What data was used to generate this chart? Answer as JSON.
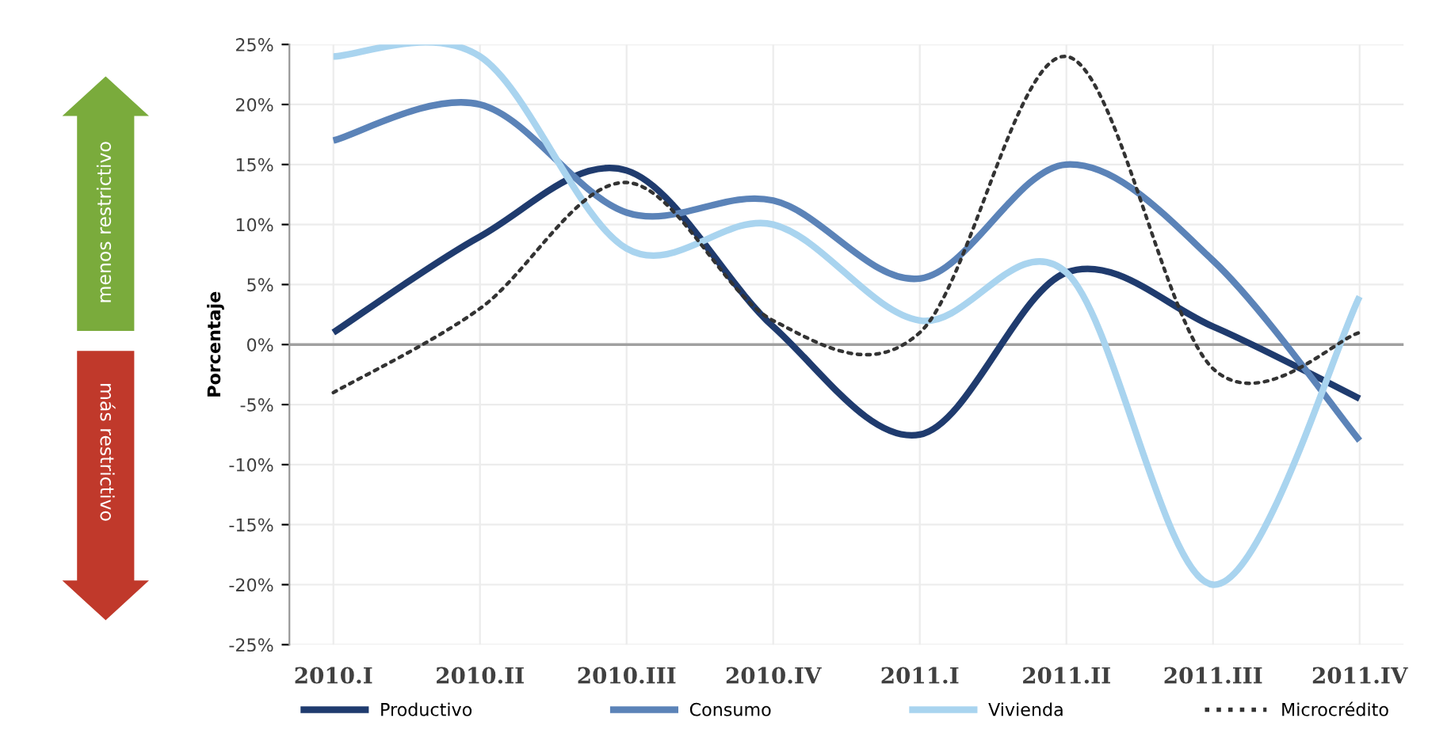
{
  "chart_data": {
    "type": "line",
    "ylabel": "Porcentaje",
    "categories": [
      "2010.I",
      "2010.II",
      "2010.III",
      "2010.IV",
      "2011.I",
      "2011.II",
      "2011.III",
      "2011.IV"
    ],
    "series": [
      {
        "name": "Productivo",
        "color": "#1f3b6e",
        "values": [
          1,
          9,
          14.5,
          1.5,
          -7.5,
          6,
          1.5,
          -4.5
        ]
      },
      {
        "name": "Consumo",
        "color": "#5b83b8",
        "values": [
          17,
          20,
          11,
          12,
          5.5,
          15,
          7,
          -8
        ]
      },
      {
        "name": "Vivienda",
        "color": "#a9d4ef",
        "values": [
          24,
          24,
          8,
          10,
          2,
          6,
          -20,
          4
        ]
      },
      {
        "name": "Microcrédito",
        "color": "#333333",
        "line_style": "dotted",
        "values": [
          -4,
          3,
          13.5,
          2,
          1,
          24,
          -2,
          1
        ]
      }
    ],
    "ylim": [
      -25,
      25
    ],
    "yticks": [
      {
        "value": -25,
        "label": "-25%"
      },
      {
        "value": -20,
        "label": "-20%"
      },
      {
        "value": -15,
        "label": "-15%"
      },
      {
        "value": -10,
        "label": "-10%"
      },
      {
        "value": -5,
        "label": "-5%"
      },
      {
        "value": 0,
        "label": "0%"
      },
      {
        "value": 5,
        "label": "5%"
      },
      {
        "value": 10,
        "label": "10%"
      },
      {
        "value": 15,
        "label": "15%"
      },
      {
        "value": 20,
        "label": "20%"
      },
      {
        "value": 25,
        "label": "25%"
      }
    ],
    "ref_lines": [
      {
        "axis": "y",
        "value": 0,
        "color": "#a0a0a0"
      }
    ],
    "annotations": [
      "menos restrictivo",
      "más restrictivo"
    ],
    "grid": true,
    "legend": "bottom",
    "marker": "none",
    "line_style": "solid"
  }
}
